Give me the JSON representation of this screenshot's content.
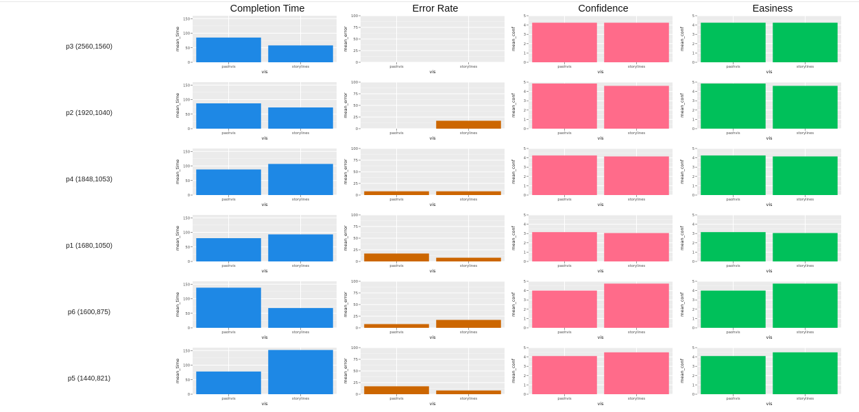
{
  "column_titles": [
    "Completion Time",
    "Error Rate",
    "Confidence",
    "Easiness"
  ],
  "row_labels": [
    "p3 (2560,1560)",
    "p2 (1920,1040)",
    "p4 (1848,1053)",
    "p1 (1680,1050)",
    "p6 (1600,875)",
    "p5 (1440,821)"
  ],
  "colors": {
    "time": "#1e88e5",
    "error": "#cc6600",
    "confidence": "#ff6b8a",
    "easiness": "#00c05a",
    "panel_bg": "#ebebeb",
    "grid": "#ffffff"
  },
  "chart_data": [
    {
      "type": "bar",
      "metric": "time",
      "row": "p3 (2560,1560)",
      "categories": [
        "paohvis",
        "storylines"
      ],
      "values": [
        85,
        58
      ],
      "xlabel": "vis",
      "ylabel": "mean_time",
      "ylim": [
        0,
        160
      ],
      "yticks": [
        0,
        50,
        100,
        150
      ]
    },
    {
      "type": "bar",
      "metric": "error",
      "row": "p3 (2560,1560)",
      "categories": [
        "paohvis",
        "storylines"
      ],
      "values": [
        0,
        0
      ],
      "xlabel": "vis",
      "ylabel": "mean_error",
      "ylim": [
        0,
        100
      ],
      "yticks": [
        0,
        25,
        50,
        75,
        100
      ]
    },
    {
      "type": "bar",
      "metric": "confidence",
      "row": "p3 (2560,1560)",
      "categories": [
        "paohvis",
        "storylines"
      ],
      "values": [
        4.25,
        4.25
      ],
      "xlabel": "vis",
      "ylabel": "mean_conf",
      "ylim": [
        0,
        5
      ],
      "yticks": [
        0,
        1,
        2,
        3,
        4,
        5
      ]
    },
    {
      "type": "bar",
      "metric": "easiness",
      "row": "p3 (2560,1560)",
      "categories": [
        "paohvis",
        "storylines"
      ],
      "values": [
        4.25,
        4.25
      ],
      "xlabel": "vis",
      "ylabel": "mean_conf",
      "ylim": [
        0,
        5
      ],
      "yticks": [
        0,
        1,
        2,
        3,
        4,
        5
      ]
    },
    {
      "type": "bar",
      "metric": "time",
      "row": "p2 (1920,1040)",
      "categories": [
        "paohvis",
        "storylines"
      ],
      "values": [
        87,
        73
      ],
      "xlabel": "vis",
      "ylabel": "mean_time",
      "ylim": [
        0,
        160
      ],
      "yticks": [
        0,
        50,
        100,
        150
      ]
    },
    {
      "type": "bar",
      "metric": "error",
      "row": "p2 (1920,1040)",
      "categories": [
        "paohvis",
        "storylines"
      ],
      "values": [
        0,
        17
      ],
      "xlabel": "vis",
      "ylabel": "mean_error",
      "ylim": [
        0,
        100
      ],
      "yticks": [
        0,
        25,
        50,
        75,
        100
      ]
    },
    {
      "type": "bar",
      "metric": "confidence",
      "row": "p2 (1920,1040)",
      "categories": [
        "paohvis",
        "storylines"
      ],
      "values": [
        4.85,
        4.6
      ],
      "xlabel": "vis",
      "ylabel": "mean_conf",
      "ylim": [
        0,
        5
      ],
      "yticks": [
        0,
        1,
        2,
        3,
        4,
        5
      ]
    },
    {
      "type": "bar",
      "metric": "easiness",
      "row": "p2 (1920,1040)",
      "categories": [
        "paohvis",
        "storylines"
      ],
      "values": [
        4.85,
        4.6
      ],
      "xlabel": "vis",
      "ylabel": "mean_conf",
      "ylim": [
        0,
        5
      ],
      "yticks": [
        0,
        1,
        2,
        3,
        4,
        5
      ]
    },
    {
      "type": "bar",
      "metric": "time",
      "row": "p4 (1848,1053)",
      "categories": [
        "paohvis",
        "storylines"
      ],
      "values": [
        88,
        107
      ],
      "xlabel": "vis",
      "ylabel": "mean_time",
      "ylim": [
        0,
        160
      ],
      "yticks": [
        0,
        50,
        100,
        150
      ]
    },
    {
      "type": "bar",
      "metric": "error",
      "row": "p4 (1848,1053)",
      "categories": [
        "paohvis",
        "storylines"
      ],
      "values": [
        8,
        8
      ],
      "xlabel": "vis",
      "ylabel": "mean_error",
      "ylim": [
        0,
        100
      ],
      "yticks": [
        0,
        25,
        50,
        75,
        100
      ]
    },
    {
      "type": "bar",
      "metric": "confidence",
      "row": "p4 (1848,1053)",
      "categories": [
        "paohvis",
        "storylines"
      ],
      "values": [
        4.25,
        4.15
      ],
      "xlabel": "vis",
      "ylabel": "mean_conf",
      "ylim": [
        0,
        5
      ],
      "yticks": [
        0,
        1,
        2,
        3,
        4,
        5
      ]
    },
    {
      "type": "bar",
      "metric": "easiness",
      "row": "p4 (1848,1053)",
      "categories": [
        "paohvis",
        "storylines"
      ],
      "values": [
        4.25,
        4.15
      ],
      "xlabel": "vis",
      "ylabel": "mean_conf",
      "ylim": [
        0,
        5
      ],
      "yticks": [
        0,
        1,
        2,
        3,
        4,
        5
      ]
    },
    {
      "type": "bar",
      "metric": "time",
      "row": "p1 (1680,1050)",
      "categories": [
        "paohvis",
        "storylines"
      ],
      "values": [
        80,
        93
      ],
      "xlabel": "vis",
      "ylabel": "mean_time",
      "ylim": [
        0,
        160
      ],
      "yticks": [
        0,
        50,
        100,
        150
      ]
    },
    {
      "type": "bar",
      "metric": "error",
      "row": "p1 (1680,1050)",
      "categories": [
        "paohvis",
        "storylines"
      ],
      "values": [
        17,
        8
      ],
      "xlabel": "vis",
      "ylabel": "mean_error",
      "ylim": [
        0,
        100
      ],
      "yticks": [
        0,
        25,
        50,
        75,
        100
      ]
    },
    {
      "type": "bar",
      "metric": "confidence",
      "row": "p1 (1680,1050)",
      "categories": [
        "paohvis",
        "storylines"
      ],
      "values": [
        3.15,
        3.05
      ],
      "xlabel": "vis",
      "ylabel": "mean_conf",
      "ylim": [
        0,
        5
      ],
      "yticks": [
        0,
        1,
        2,
        3,
        4,
        5
      ]
    },
    {
      "type": "bar",
      "metric": "easiness",
      "row": "p1 (1680,1050)",
      "categories": [
        "paohvis",
        "storylines"
      ],
      "values": [
        3.15,
        3.05
      ],
      "xlabel": "vis",
      "ylabel": "mean_conf",
      "ylim": [
        0,
        5
      ],
      "yticks": [
        0,
        1,
        2,
        3,
        4,
        5
      ]
    },
    {
      "type": "bar",
      "metric": "time",
      "row": "p6 (1600,875)",
      "categories": [
        "paohvis",
        "storylines"
      ],
      "values": [
        138,
        68
      ],
      "xlabel": "vis",
      "ylabel": "mean_time",
      "ylim": [
        0,
        160
      ],
      "yticks": [
        0,
        50,
        100,
        150
      ]
    },
    {
      "type": "bar",
      "metric": "error",
      "row": "p6 (1600,875)",
      "categories": [
        "paohvis",
        "storylines"
      ],
      "values": [
        8,
        17
      ],
      "xlabel": "vis",
      "ylabel": "mean_error",
      "ylim": [
        0,
        100
      ],
      "yticks": [
        0,
        25,
        50,
        75,
        100
      ]
    },
    {
      "type": "bar",
      "metric": "confidence",
      "row": "p6 (1600,875)",
      "categories": [
        "paohvis",
        "storylines"
      ],
      "values": [
        4.0,
        4.75
      ],
      "xlabel": "vis",
      "ylabel": "mean_conf",
      "ylim": [
        0,
        5
      ],
      "yticks": [
        0,
        1,
        2,
        3,
        4,
        5
      ]
    },
    {
      "type": "bar",
      "metric": "easiness",
      "row": "p6 (1600,875)",
      "categories": [
        "paohvis",
        "storylines"
      ],
      "values": [
        4.0,
        4.75
      ],
      "xlabel": "vis",
      "ylabel": "mean_conf",
      "ylim": [
        0,
        5
      ],
      "yticks": [
        0,
        1,
        2,
        3,
        4,
        5
      ]
    },
    {
      "type": "bar",
      "metric": "time",
      "row": "p5 (1440,821)",
      "categories": [
        "paohvis",
        "storylines"
      ],
      "values": [
        78,
        152
      ],
      "xlabel": "vis",
      "ylabel": "mean_time",
      "ylim": [
        0,
        160
      ],
      "yticks": [
        0,
        50,
        100,
        150
      ]
    },
    {
      "type": "bar",
      "metric": "error",
      "row": "p5 (1440,821)",
      "categories": [
        "paohvis",
        "storylines"
      ],
      "values": [
        17,
        8
      ],
      "xlabel": "vis",
      "ylabel": "mean_error",
      "ylim": [
        0,
        100
      ],
      "yticks": [
        0,
        25,
        50,
        75,
        100
      ]
    },
    {
      "type": "bar",
      "metric": "confidence",
      "row": "p5 (1440,821)",
      "categories": [
        "paohvis",
        "storylines"
      ],
      "values": [
        4.1,
        4.5
      ],
      "xlabel": "vis",
      "ylabel": "mean_conf",
      "ylim": [
        0,
        5
      ],
      "yticks": [
        0,
        1,
        2,
        3,
        4,
        5
      ]
    },
    {
      "type": "bar",
      "metric": "easiness",
      "row": "p5 (1440,821)",
      "categories": [
        "paohvis",
        "storylines"
      ],
      "values": [
        4.1,
        4.5
      ],
      "xlabel": "vis",
      "ylabel": "mean_conf",
      "ylim": [
        0,
        5
      ],
      "yticks": [
        0,
        1,
        2,
        3,
        4,
        5
      ]
    }
  ]
}
